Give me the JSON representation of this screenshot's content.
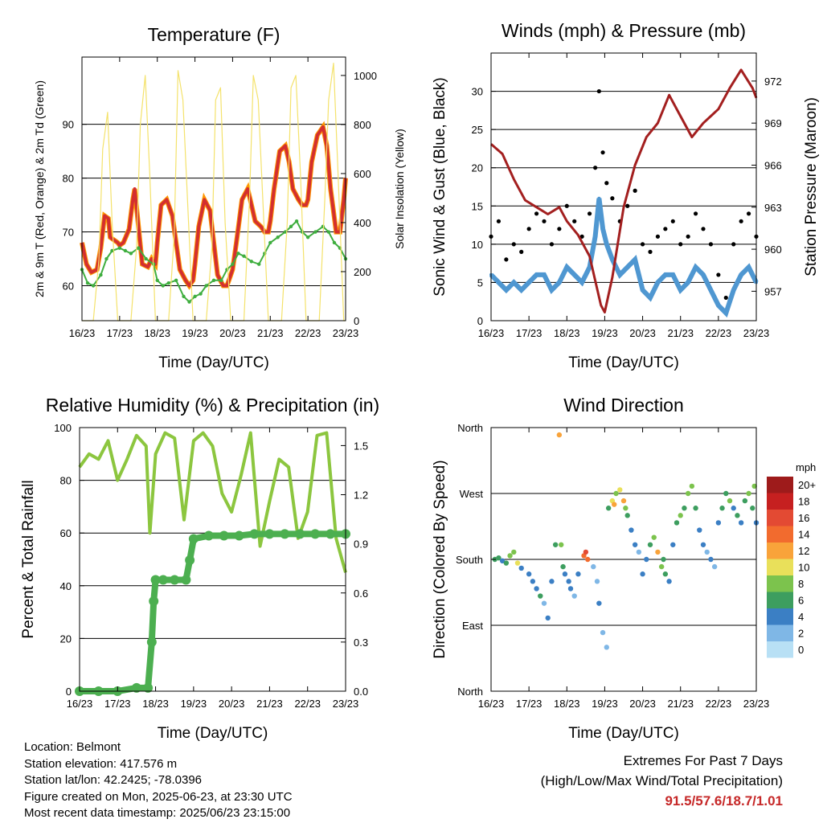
{
  "colors": {
    "temp": "#d32f2f",
    "temp9": "#ff9800",
    "dewpoint": "#3fae3f",
    "solar": "#f4e26b",
    "gust": "#000000",
    "wind": "#4f97d1",
    "pressure": "#a31f1f",
    "rh": "#8cc63f",
    "precip": "#4caf50",
    "extremes": "#c62828"
  },
  "x_ticks": [
    "16/23",
    "17/23",
    "18/23",
    "19/23",
    "20/23",
    "21/23",
    "22/23",
    "23/23"
  ],
  "chart_data": [
    {
      "id": "temperature",
      "type": "line",
      "title": "Temperature (F)",
      "xlabel": "Time (Day/UTC)",
      "ylabel": "2m & 9m T (Red, Orange) & 2m Td (Green)",
      "ylabel_right": "Solar Insolation (Yellow)",
      "ylim": [
        53.5,
        102.5
      ],
      "ylim_right": [
        0,
        1075
      ],
      "yticks": [
        60,
        70,
        80,
        90
      ],
      "yticks_right": [
        0,
        200,
        400,
        600,
        800,
        1000
      ],
      "grid_y": [
        60,
        70,
        80,
        90
      ],
      "xlim": [
        0,
        7
      ],
      "series": [
        {
          "key": "temp",
          "x": [
            0,
            0.12,
            0.25,
            0.4,
            0.5,
            0.6,
            0.7,
            0.75,
            0.85,
            0.95,
            1.0,
            1.1,
            1.25,
            1.35,
            1.4,
            1.5,
            1.6,
            1.75,
            1.85,
            1.95,
            2.0,
            2.1,
            2.25,
            2.4,
            2.5,
            2.6,
            2.75,
            2.85,
            2.95,
            3.0,
            3.1,
            3.25,
            3.4,
            3.5,
            3.6,
            3.75,
            3.85,
            3.95,
            4.0,
            4.1,
            4.25,
            4.4,
            4.5,
            4.6,
            4.75,
            4.85,
            4.95,
            5.0,
            5.1,
            5.25,
            5.4,
            5.5,
            5.6,
            5.75,
            5.85,
            5.95,
            6.0,
            6.1,
            6.25,
            6.4,
            6.5,
            6.6,
            6.75,
            6.85,
            6.95,
            7.0
          ],
          "y": [
            68,
            64,
            62.5,
            63,
            67,
            73,
            72.5,
            69,
            68.5,
            68,
            67.5,
            68,
            70.5,
            76,
            78,
            71,
            64,
            63.5,
            65,
            64,
            68,
            75,
            76,
            73,
            68,
            63,
            61,
            60,
            61,
            64,
            71,
            76,
            74,
            68,
            62,
            60,
            60,
            62,
            63,
            68,
            76,
            78,
            75,
            72,
            71,
            70,
            70,
            72,
            78,
            85,
            86,
            83,
            78,
            76,
            75,
            75,
            76,
            83,
            88,
            89.5,
            86,
            78,
            70,
            70,
            76,
            80
          ]
        },
        {
          "key": "dewpoint",
          "x": [
            0,
            0.15,
            0.3,
            0.5,
            0.65,
            0.8,
            1.0,
            1.15,
            1.3,
            1.5,
            1.7,
            1.9,
            2.0,
            2.15,
            2.3,
            2.5,
            2.7,
            2.85,
            3.0,
            3.15,
            3.3,
            3.5,
            3.7,
            3.85,
            4.0,
            4.15,
            4.3,
            4.5,
            4.7,
            4.85,
            5.0,
            5.2,
            5.4,
            5.55,
            5.7,
            5.85,
            6.0,
            6.2,
            6.4,
            6.55,
            6.7,
            6.85,
            7.0
          ],
          "y": [
            63,
            60.5,
            60,
            62,
            65,
            66.5,
            67,
            66.5,
            66,
            67,
            65,
            64,
            61,
            60,
            60.5,
            61,
            58,
            57,
            58,
            58.5,
            60,
            61,
            61,
            63,
            64,
            66,
            65.5,
            64.5,
            64,
            66,
            68,
            69,
            70,
            71,
            72,
            70,
            69,
            70,
            71,
            70,
            68,
            67,
            65
          ]
        },
        {
          "key": "solar",
          "x": [
            0,
            0.3,
            0.45,
            0.55,
            0.68,
            0.8,
            0.95,
            1.3,
            1.45,
            1.55,
            1.68,
            1.8,
            1.95,
            2.3,
            2.45,
            2.55,
            2.68,
            2.8,
            2.95,
            3.3,
            3.45,
            3.55,
            3.68,
            3.8,
            3.95,
            4.3,
            4.45,
            4.55,
            4.68,
            4.8,
            4.95,
            5.3,
            5.45,
            5.55,
            5.68,
            5.8,
            5.95,
            6.3,
            6.45,
            6.55,
            6.68,
            6.8,
            6.95,
            7.0
          ],
          "y": [
            0,
            0,
            250,
            700,
            850,
            400,
            0,
            0,
            300,
            800,
            1000,
            600,
            0,
            0,
            350,
            1020,
            900,
            500,
            0,
            0,
            300,
            900,
            950,
            400,
            0,
            0,
            500,
            1000,
            900,
            500,
            0,
            0,
            400,
            950,
            1000,
            600,
            0,
            0,
            500,
            900,
            1050,
            600,
            0,
            0
          ]
        }
      ]
    },
    {
      "id": "winds",
      "type": "line",
      "title": "Winds (mph) & Pressure (mb)",
      "xlabel": "Time (Day/UTC)",
      "ylabel": "Sonic Wind & Gust (Blue, Black)",
      "ylabel_right": "Station Pressure (Maroon)",
      "ylim": [
        0,
        35
      ],
      "ylim_right": [
        954.9,
        974.0
      ],
      "yticks": [
        0,
        5,
        10,
        15,
        20,
        25,
        30
      ],
      "yticks_right": [
        957,
        960,
        963,
        966,
        969,
        972
      ],
      "grid_y": [
        5,
        10,
        15,
        20,
        25,
        30
      ],
      "xlim": [
        0,
        7
      ],
      "series": [
        {
          "key": "gust",
          "x": [
            0,
            0.2,
            0.4,
            0.6,
            0.8,
            1.0,
            1.2,
            1.4,
            1.6,
            1.8,
            2.0,
            2.2,
            2.4,
            2.6,
            2.75,
            2.85,
            2.95,
            3.05,
            3.2,
            3.4,
            3.6,
            3.8,
            4.0,
            4.2,
            4.4,
            4.6,
            4.8,
            5.0,
            5.2,
            5.4,
            5.6,
            5.8,
            6.0,
            6.2,
            6.4,
            6.6,
            6.8,
            7.0
          ],
          "y": [
            11,
            13,
            8,
            10,
            9,
            12,
            14,
            13,
            10,
            12,
            15,
            13,
            11,
            14,
            20,
            30,
            22,
            18,
            16,
            13,
            15,
            17,
            10,
            9,
            11,
            12,
            13,
            10,
            11,
            14,
            12,
            10,
            6,
            3,
            10,
            13,
            14,
            11
          ]
        },
        {
          "key": "wind",
          "x": [
            0,
            0.2,
            0.4,
            0.6,
            0.8,
            1.0,
            1.2,
            1.4,
            1.6,
            1.8,
            2.0,
            2.2,
            2.4,
            2.6,
            2.75,
            2.85,
            2.95,
            3.05,
            3.2,
            3.4,
            3.6,
            3.8,
            4.0,
            4.2,
            4.4,
            4.6,
            4.8,
            5.0,
            5.2,
            5.4,
            5.6,
            5.8,
            6.0,
            6.2,
            6.4,
            6.6,
            6.8,
            7.0
          ],
          "y": [
            6,
            5,
            4,
            5,
            4,
            5,
            6,
            6,
            4,
            5,
            7,
            6,
            5,
            7,
            11,
            16,
            12,
            10,
            8,
            6,
            7,
            8,
            4,
            3,
            5,
            6,
            6,
            4,
            5,
            7,
            6,
            4,
            2,
            1,
            4,
            6,
            7,
            5
          ]
        },
        {
          "key": "pressure",
          "x": [
            0,
            0.3,
            0.6,
            0.9,
            1.2,
            1.5,
            1.8,
            2.0,
            2.3,
            2.6,
            2.9,
            3.0,
            3.2,
            3.5,
            3.8,
            4.1,
            4.4,
            4.7,
            5.0,
            5.3,
            5.6,
            5.8,
            6.0,
            6.3,
            6.6,
            6.9,
            7.0
          ],
          "y": [
            967.5,
            966.8,
            965,
            963.5,
            963,
            962.5,
            963,
            962,
            961,
            959.5,
            956,
            955.5,
            958,
            963,
            966,
            968,
            969,
            971,
            969.5,
            968,
            969,
            969.5,
            970,
            971.5,
            972.8,
            971.5,
            970.8
          ]
        }
      ]
    },
    {
      "id": "humidity",
      "type": "line",
      "title": "Relative Humidity (%) & Precipitation (in)",
      "xlabel": "Time (Day/UTC)",
      "ylabel": "Percent & Total Rainfall",
      "ylim": [
        0,
        100
      ],
      "ylim_right": [
        0,
        1.61
      ],
      "yticks": [
        0,
        20,
        40,
        60,
        80,
        100
      ],
      "yticks_right": [
        "0.0",
        "0.3",
        "0.6",
        "0.9",
        "1.2",
        "1.5"
      ],
      "grid_y": [
        20,
        40,
        60,
        80
      ],
      "xlim": [
        0,
        7
      ],
      "series": [
        {
          "key": "rh",
          "x": [
            0,
            0.25,
            0.5,
            0.75,
            1.0,
            1.25,
            1.5,
            1.75,
            1.85,
            2.0,
            2.25,
            2.5,
            2.75,
            3.0,
            3.25,
            3.5,
            3.75,
            4.0,
            4.25,
            4.5,
            4.75,
            5.0,
            5.25,
            5.5,
            5.75,
            6.0,
            6.25,
            6.5,
            6.75,
            7.0
          ],
          "y": [
            85,
            90,
            88,
            95,
            80,
            88,
            97,
            93,
            60,
            90,
            98,
            96,
            65,
            95,
            98,
            93,
            75,
            68,
            82,
            98,
            55,
            72,
            88,
            85,
            58,
            68,
            97,
            98,
            58,
            45
          ]
        },
        {
          "key": "precip",
          "x": [
            0,
            0.5,
            1.0,
            1.5,
            1.8,
            1.9,
            1.95,
            2.0,
            2.2,
            2.5,
            2.8,
            2.9,
            3.0,
            3.4,
            3.8,
            4.2,
            4.6,
            5.0,
            5.4,
            5.8,
            6.2,
            6.6,
            7.0
          ],
          "y": [
            0,
            0,
            0,
            0.02,
            0.02,
            0.3,
            0.55,
            0.68,
            0.68,
            0.68,
            0.68,
            0.8,
            0.93,
            0.95,
            0.95,
            0.95,
            0.96,
            0.96,
            0.96,
            0.96,
            0.96,
            0.96,
            0.96
          ]
        }
      ]
    },
    {
      "id": "wind_direction",
      "type": "scatter",
      "title": "Wind Direction",
      "xlabel": "Time (Day/UTC)",
      "ylabel": "Direction (Colored By Speed)",
      "yticks": [
        "North",
        "East",
        "South",
        "West",
        "North"
      ],
      "ylim": [
        0,
        360
      ],
      "xlim": [
        0,
        7
      ],
      "legend": {
        "title": "mph",
        "labels": [
          "20+",
          "18",
          "16",
          "14",
          "12",
          "10",
          "8",
          "6",
          "4",
          "2",
          "0"
        ],
        "colors": [
          "#9e1b1b",
          "#c62020",
          "#e34a33",
          "#f26b2e",
          "#f9a33a",
          "#e9e05a",
          "#7cc34d",
          "#3d9e5f",
          "#3b7fc4",
          "#7fb7e6",
          "#b8e0f5"
        ]
      },
      "points": [
        [
          0.1,
          180,
          6
        ],
        [
          0.2,
          182,
          5
        ],
        [
          0.3,
          178,
          4
        ],
        [
          0.4,
          175,
          5
        ],
        [
          0.5,
          185,
          7
        ],
        [
          0.6,
          190,
          8
        ],
        [
          0.7,
          175,
          9
        ],
        [
          0.8,
          168,
          4
        ],
        [
          1.0,
          160,
          3
        ],
        [
          1.1,
          150,
          4
        ],
        [
          1.2,
          140,
          3
        ],
        [
          1.3,
          130,
          5
        ],
        [
          1.4,
          120,
          2
        ],
        [
          1.5,
          100,
          3
        ],
        [
          1.6,
          150,
          4
        ],
        [
          1.7,
          200,
          6
        ],
        [
          1.8,
          350,
          12
        ],
        [
          1.85,
          200,
          8
        ],
        [
          1.9,
          170,
          5
        ],
        [
          1.95,
          160,
          3
        ],
        [
          2.05,
          150,
          4
        ],
        [
          2.1,
          140,
          3
        ],
        [
          2.2,
          130,
          2
        ],
        [
          2.3,
          160,
          4
        ],
        [
          2.45,
          185,
          14
        ],
        [
          2.5,
          190,
          16
        ],
        [
          2.55,
          180,
          13
        ],
        [
          2.7,
          170,
          2
        ],
        [
          2.8,
          150,
          1
        ],
        [
          2.85,
          120,
          3
        ],
        [
          2.95,
          80,
          2
        ],
        [
          3.05,
          60,
          1
        ],
        [
          3.1,
          250,
          6
        ],
        [
          3.2,
          260,
          9
        ],
        [
          3.25,
          255,
          11
        ],
        [
          3.3,
          270,
          8
        ],
        [
          3.4,
          275,
          10
        ],
        [
          3.5,
          260,
          12
        ],
        [
          3.55,
          250,
          7
        ],
        [
          3.6,
          240,
          5
        ],
        [
          3.7,
          220,
          4
        ],
        [
          3.8,
          200,
          3
        ],
        [
          3.9,
          190,
          2
        ],
        [
          4.0,
          160,
          4
        ],
        [
          4.1,
          180,
          3
        ],
        [
          4.2,
          200,
          5
        ],
        [
          4.3,
          210,
          7
        ],
        [
          4.4,
          190,
          12
        ],
        [
          4.5,
          170,
          8
        ],
        [
          4.55,
          180,
          6
        ],
        [
          4.6,
          160,
          5
        ],
        [
          4.7,
          150,
          3
        ],
        [
          4.8,
          200,
          4
        ],
        [
          4.9,
          230,
          6
        ],
        [
          5.0,
          240,
          7
        ],
        [
          5.1,
          250,
          5
        ],
        [
          5.2,
          270,
          8
        ],
        [
          5.3,
          280,
          7
        ],
        [
          5.4,
          250,
          6
        ],
        [
          5.5,
          220,
          4
        ],
        [
          5.6,
          200,
          3
        ],
        [
          5.7,
          190,
          2
        ],
        [
          5.8,
          180,
          3
        ],
        [
          5.9,
          170,
          1
        ],
        [
          6.0,
          230,
          4
        ],
        [
          6.1,
          250,
          5
        ],
        [
          6.2,
          270,
          6
        ],
        [
          6.3,
          260,
          7
        ],
        [
          6.4,
          250,
          4
        ],
        [
          6.5,
          240,
          5
        ],
        [
          6.6,
          230,
          3
        ],
        [
          6.7,
          260,
          6
        ],
        [
          6.8,
          270,
          8
        ],
        [
          6.9,
          250,
          5
        ],
        [
          7.0,
          230,
          4
        ],
        [
          6.95,
          280,
          7
        ]
      ]
    }
  ],
  "info": {
    "location": "Location: Belmont",
    "elevation": "Station elevation: 417.576 m",
    "latlon": "Station lat/lon: 42.2425; -78.0396",
    "created": "Figure created on Mon, 2025-06-23, at 23:30 UTC",
    "recent": "Most recent data timestamp: 2025/06/23 23:15:00"
  },
  "extremes": {
    "line1": "Extremes For Past 7 Days",
    "line2": "(High/Low/Max Wind/Total Precipitation)",
    "values": "91.5/57.6/18.7/1.01"
  }
}
